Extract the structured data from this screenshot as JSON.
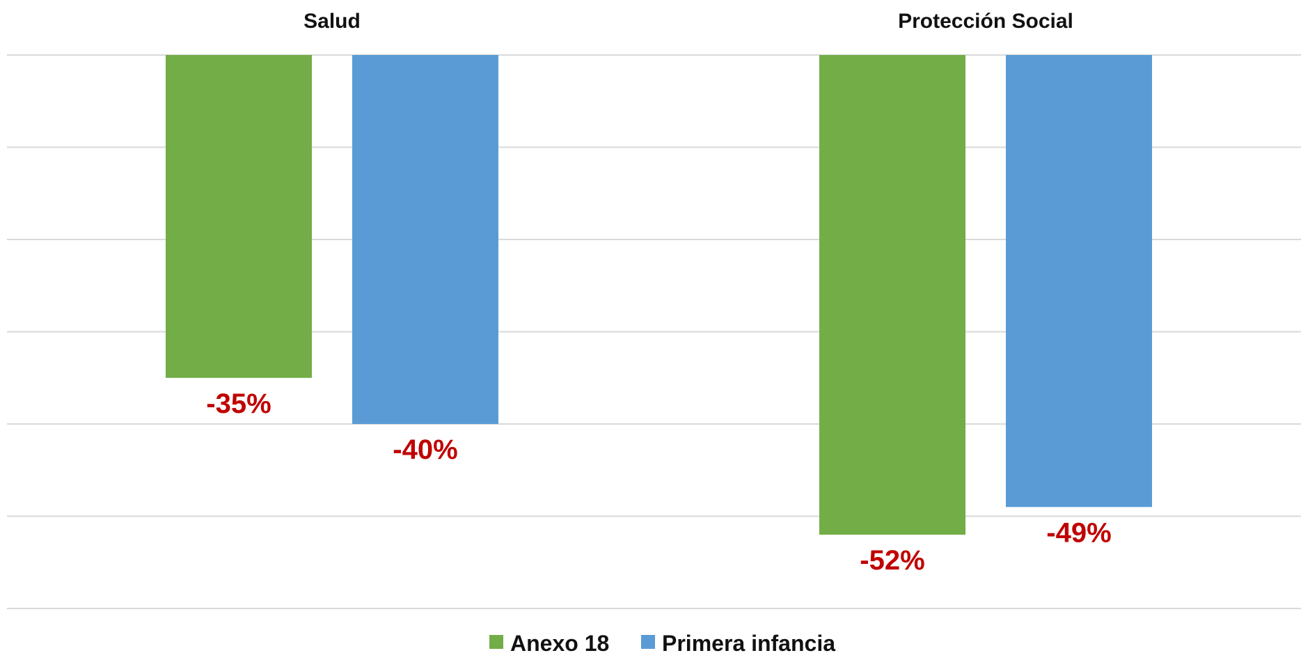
{
  "chart_data": {
    "type": "bar",
    "categories": [
      "Salud",
      "Protección Social"
    ],
    "series": [
      {
        "name": "Anexo 18",
        "values": [
          -35,
          -52
        ],
        "color": "#72ad47",
        "labels": [
          "-35%",
          "-52%"
        ]
      },
      {
        "name": "Primera infancia",
        "values": [
          -40,
          -49
        ],
        "color": "#5b9bd5",
        "labels": [
          "-40%",
          "-49%"
        ]
      }
    ],
    "ylim": [
      -60,
      0
    ],
    "grid": true,
    "legend_position": "bottom",
    "data_label_color": "#c00000",
    "category_axis_position": "top"
  }
}
